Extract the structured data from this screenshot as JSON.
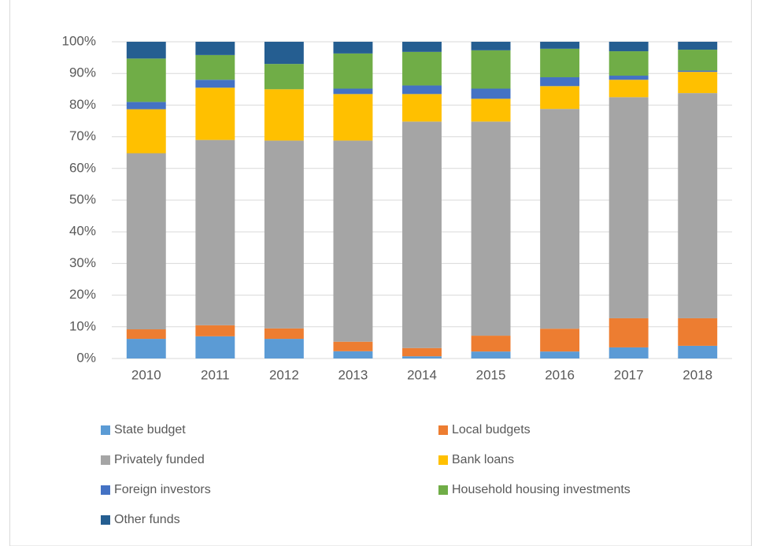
{
  "chart_data": {
    "type": "stacked_bar",
    "categories": [
      "2010",
      "2011",
      "2012",
      "2013",
      "2014",
      "2015",
      "2016",
      "2017",
      "2018"
    ],
    "series": [
      {
        "name": "State budget",
        "color": "#5b9bd5",
        "values": [
          6.2,
          7,
          6.2,
          2.3,
          0.7,
          2.2,
          2.2,
          3.5,
          4
        ]
      },
      {
        "name": "Local budgets",
        "color": "#ed7d31",
        "values": [
          3,
          3.5,
          3.3,
          3,
          2.6,
          5,
          7.2,
          9.2,
          8.7
        ]
      },
      {
        "name": "Privately funded",
        "color": "#a5a5a5",
        "values": [
          55.6,
          58.5,
          59.3,
          63.5,
          71.5,
          67.6,
          69.4,
          69.8,
          71.1
        ]
      },
      {
        "name": "Bank loans",
        "color": "#ffc000",
        "values": [
          13.9,
          16.5,
          16.2,
          14.7,
          8.7,
          7.2,
          7.2,
          5.5,
          6.7
        ]
      },
      {
        "name": "Foreign investors",
        "color": "#4472c4",
        "values": [
          2.3,
          2.5,
          0,
          1.7,
          2.7,
          3.2,
          2.8,
          1.3,
          0.4
        ]
      },
      {
        "name": "Household housing investments",
        "color": "#70ad47",
        "values": [
          13.7,
          7.8,
          8,
          11.1,
          10.6,
          12.1,
          9,
          7.7,
          6.6
        ]
      },
      {
        "name": "Other funds",
        "color": "#255e91",
        "values": [
          5.3,
          4.2,
          7,
          3.7,
          3.2,
          2.7,
          2.2,
          3,
          2.5
        ]
      }
    ],
    "ylim": [
      0,
      100
    ],
    "yticks": [
      {
        "value": 0,
        "label": "0%"
      },
      {
        "value": 10,
        "label": "10%"
      },
      {
        "value": 20,
        "label": "20%"
      },
      {
        "value": 30,
        "label": "30%"
      },
      {
        "value": 40,
        "label": "40%"
      },
      {
        "value": 50,
        "label": "50%"
      },
      {
        "value": 60,
        "label": "60%"
      },
      {
        "value": 70,
        "label": "70%"
      },
      {
        "value": 80,
        "label": "80%"
      },
      {
        "value": 90,
        "label": "90%"
      },
      {
        "value": 100,
        "label": "100%"
      }
    ],
    "grid": true,
    "legend": "bottom"
  }
}
